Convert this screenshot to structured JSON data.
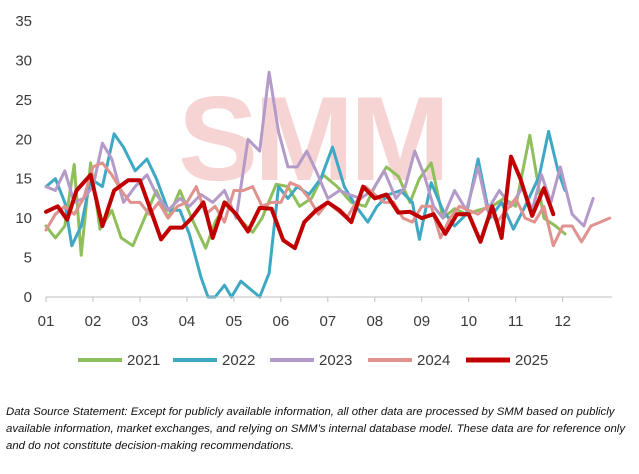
{
  "chart_data": {
    "type": "line",
    "title": "",
    "xlabel": "",
    "ylabel": "",
    "ylim": [
      0,
      35
    ],
    "yticks": [
      0,
      5,
      10,
      15,
      20,
      25,
      30,
      35
    ],
    "xticks": [
      "01",
      "02",
      "03",
      "04",
      "05",
      "06",
      "07",
      "08",
      "09",
      "10",
      "11",
      "12"
    ],
    "xlim": [
      1,
      13.05
    ],
    "grid": false,
    "legend_position": "bottom",
    "watermark": "SMM",
    "series": [
      {
        "name": "2021",
        "color": "#8fbf5a",
        "width": 3,
        "x": [
          1.0,
          1.2,
          1.4,
          1.6,
          1.75,
          1.95,
          2.15,
          2.4,
          2.6,
          2.85,
          3.1,
          3.35,
          3.6,
          3.85,
          4.1,
          4.4,
          4.6,
          4.85,
          5.1,
          5.4,
          5.6,
          5.9,
          6.15,
          6.4,
          6.65,
          6.9,
          7.2,
          7.5,
          7.8,
          8.0,
          8.25,
          8.5,
          8.75,
          8.95,
          9.2,
          9.45,
          9.7,
          9.95,
          10.2,
          10.5,
          10.75,
          11.0,
          11.3,
          11.6,
          11.85,
          12.05
        ],
        "y": [
          9,
          7.5,
          9,
          16.8,
          5.3,
          17,
          8.6,
          11,
          7.5,
          6.5,
          10,
          13.5,
          10,
          13.5,
          10,
          6.2,
          9.5,
          12,
          10,
          8.2,
          10,
          14.3,
          14,
          11.5,
          12.5,
          15.5,
          14,
          12,
          11.5,
          14,
          16.5,
          15.3,
          12,
          15,
          17,
          10,
          11.2,
          10.5,
          11,
          11.5,
          12.5,
          11.5,
          20.5,
          10,
          9,
          8
        ]
      },
      {
        "name": "2022",
        "color": "#3fa8c4",
        "width": 3,
        "x": [
          1.0,
          1.2,
          1.4,
          1.55,
          1.75,
          1.95,
          2.2,
          2.45,
          2.65,
          2.9,
          3.15,
          3.35,
          3.6,
          3.85,
          4.05,
          4.3,
          4.45,
          4.6,
          4.8,
          4.95,
          5.15,
          5.35,
          5.55,
          5.75,
          5.95,
          6.15,
          6.35,
          6.6,
          6.85,
          7.1,
          7.35,
          7.6,
          7.85,
          8.05,
          8.3,
          8.55,
          8.8,
          8.95,
          9.2,
          9.45,
          9.7,
          9.95,
          10.2,
          10.45,
          10.7,
          10.95,
          11.2,
          11.5,
          11.7,
          11.9,
          12.05
        ],
        "y": [
          14,
          15,
          12,
          6.5,
          9,
          15,
          14,
          20.7,
          19,
          16,
          17.5,
          15,
          11,
          11,
          8,
          2.5,
          0,
          0,
          1.5,
          0,
          2,
          1,
          0,
          3,
          14,
          12.5,
          14,
          13,
          15,
          19,
          14,
          11.5,
          9.5,
          11.5,
          13,
          13.5,
          12,
          7.3,
          14.5,
          11,
          9,
          10.5,
          17.5,
          10,
          12,
          8.6,
          11.5,
          15.3,
          21,
          16,
          13.5
        ]
      },
      {
        "name": "2023",
        "color": "#b49ac8",
        "width": 3,
        "x": [
          1.0,
          1.2,
          1.4,
          1.6,
          1.8,
          2.0,
          2.2,
          2.4,
          2.65,
          2.9,
          3.15,
          3.35,
          3.6,
          3.85,
          4.05,
          4.3,
          4.55,
          4.8,
          5.05,
          5.3,
          5.55,
          5.75,
          5.95,
          6.15,
          6.35,
          6.55,
          6.75,
          7.0,
          7.25,
          7.45,
          7.7,
          7.95,
          8.2,
          8.45,
          8.65,
          8.85,
          9.05,
          9.25,
          9.45,
          9.7,
          9.95,
          10.2,
          10.4,
          10.65,
          10.9,
          11.15,
          11.35,
          11.55,
          11.75,
          11.95,
          12.2,
          12.45,
          12.65
        ],
        "y": [
          14,
          13.5,
          16,
          12,
          12.5,
          14,
          19.5,
          17.5,
          12,
          14,
          15.5,
          13,
          11,
          12.5,
          11.5,
          13,
          12,
          13.5,
          10,
          20,
          18.5,
          28.5,
          21,
          16.5,
          16.5,
          18.5,
          16,
          12.5,
          13.5,
          13,
          12.5,
          13.5,
          16,
          12.5,
          14,
          18.5,
          15.5,
          11.5,
          10,
          13.5,
          11,
          16.5,
          11,
          13.5,
          11.5,
          14,
          11,
          15.5,
          12,
          16.5,
          10.5,
          9,
          12.5
        ]
      },
      {
        "name": "2024",
        "color": "#e0928f",
        "width": 3,
        "x": [
          1.0,
          1.2,
          1.4,
          1.6,
          1.8,
          2.0,
          2.2,
          2.4,
          2.6,
          2.8,
          3.0,
          3.2,
          3.4,
          3.6,
          3.8,
          4.0,
          4.2,
          4.4,
          4.6,
          4.8,
          5.0,
          5.2,
          5.4,
          5.6,
          5.8,
          6.0,
          6.2,
          6.4,
          6.6,
          6.8,
          7.0,
          7.2,
          7.4,
          7.6,
          7.8,
          8.0,
          8.2,
          8.4,
          8.6,
          8.8,
          9.0,
          9.2,
          9.4,
          9.6,
          9.8,
          10.0,
          10.2,
          10.4,
          10.6,
          10.8,
          11.0,
          11.2,
          11.4,
          11.6,
          11.8,
          12.0,
          12.2,
          12.4,
          12.6,
          12.8,
          13.0
        ],
        "y": [
          8.5,
          10.5,
          11.5,
          10.5,
          12.5,
          16.5,
          17,
          15.5,
          13.5,
          12,
          12,
          10.5,
          12,
          10,
          11.5,
          12,
          14,
          10.5,
          11.5,
          9.5,
          13.5,
          13.5,
          14,
          11.5,
          12,
          12,
          14.5,
          14,
          12.5,
          10.5,
          12,
          11,
          10,
          12,
          14,
          13,
          12,
          12,
          10,
          9.5,
          11.5,
          11.5,
          7.5,
          10,
          11.5,
          11,
          10.5,
          11.5,
          9.5,
          11,
          12.5,
          10,
          9.5,
          11.5,
          6.5,
          9,
          9,
          7,
          9,
          9.5,
          10
        ]
      },
      {
        "name": "2025",
        "color": "#c00000",
        "width": 4,
        "x": [
          1.0,
          1.25,
          1.45,
          1.65,
          1.95,
          2.2,
          2.45,
          2.75,
          3.0,
          3.2,
          3.45,
          3.65,
          3.9,
          4.1,
          4.35,
          4.55,
          4.8,
          5.05,
          5.3,
          5.55,
          5.8,
          6.05,
          6.3,
          6.5,
          6.75,
          7.0,
          7.25,
          7.5,
          7.75,
          8.0,
          8.25,
          8.5,
          8.75,
          9.0,
          9.25,
          9.5,
          9.75,
          10.0,
          10.25,
          10.5,
          10.7,
          10.9,
          11.1,
          11.35,
          11.6,
          11.8
        ],
        "y": [
          10.8,
          11.5,
          9.8,
          13.5,
          15.5,
          9,
          13.5,
          14.8,
          14.8,
          11.5,
          7.3,
          8.8,
          8.8,
          10,
          12,
          7.5,
          12,
          10.5,
          8.3,
          11.3,
          11.2,
          7.2,
          6.2,
          9.5,
          11,
          12,
          11,
          9.5,
          14,
          12.5,
          13,
          10.7,
          10.8,
          10,
          10.5,
          8,
          10.5,
          10.5,
          7,
          11.5,
          7.5,
          17.8,
          15,
          10.3,
          13.8,
          10.5
        ]
      }
    ]
  },
  "footnote": "Data Source Statement: Except for publicly available information, all other data are processed by SMM based on publicly available information, market exchanges, and relying on SMM’s internal database model. These data are for reference only and do not constitute decision-making recommendations."
}
